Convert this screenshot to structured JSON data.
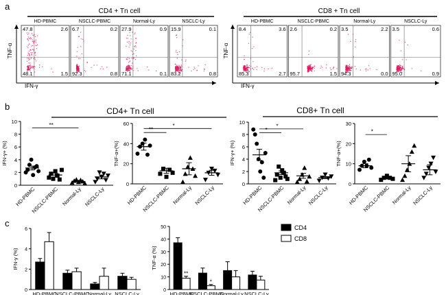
{
  "panel_labels": {
    "a": "a",
    "b": "b",
    "c": "c"
  },
  "colors": {
    "dot": "#d81b60",
    "cd4_bar": "#000000",
    "cd8_bar": "#ffffff",
    "line": "#444444"
  },
  "chart_data": [
    {
      "id": "a-cd4",
      "type": "scatter",
      "subtype": "flow-quadrant",
      "group_title": "CD4 + Tn cell",
      "xlabel": "IFN-γ",
      "ylabel": "TNF-α",
      "plots": [
        {
          "title": "HD-PBMC",
          "q": [
            "47.8",
            "2.6",
            "48.1",
            "1.5"
          ]
        },
        {
          "title": "NSCLC-PBMC",
          "q": [
            "6.7",
            "0.2",
            "92.3",
            "0.8"
          ]
        },
        {
          "title": "Normal-Ly",
          "q": [
            "27.9",
            "0.9",
            "71.1",
            "0.1"
          ]
        },
        {
          "title": "NSCLC-Ly",
          "q": [
            "15.9",
            "0.1",
            "83.2",
            "0.8"
          ]
        }
      ]
    },
    {
      "id": "a-cd8",
      "type": "scatter",
      "subtype": "flow-quadrant",
      "group_title": "CD8 + Tn cell",
      "xlabel": "IFN-γ",
      "ylabel": "TNF-α",
      "plots": [
        {
          "title": "HD-PBMC",
          "q": [
            "8.4",
            "3.6",
            "85.3",
            "2.7"
          ]
        },
        {
          "title": "NSCLC-PBMC",
          "q": [
            "2.6",
            "0.2",
            "95.7",
            "1.5"
          ]
        },
        {
          "title": "Normal-Ly",
          "q": [
            "3.5",
            "2.2",
            "94.3",
            "0.0"
          ]
        },
        {
          "title": "NSCLC-Ly",
          "q": [
            "3.5",
            "0.6",
            "95.0",
            "0.9"
          ]
        }
      ]
    },
    {
      "id": "b1",
      "type": "scatter",
      "group_title": "CD4+ Tn cell",
      "ylabel": "IFN-γ+ (%)",
      "ylim": [
        0,
        10
      ],
      "yticks": [
        0,
        2,
        4,
        6,
        8,
        10
      ],
      "categories": [
        "HD-PBMC",
        "NSCLC-PBMC",
        "Normal-Ly",
        "NSCLC-Ly"
      ],
      "points": [
        [
          2.0,
          2.4,
          3.2,
          4.0,
          1.6,
          2.8,
          3.0,
          2.2
        ],
        [
          1.2,
          1.8,
          1.0,
          2.2,
          1.5,
          0.9,
          2.4
        ],
        [
          0.4,
          0.7,
          0.9,
          0.5,
          0.8,
          0.6,
          0.3
        ],
        [
          0.5,
          1.0,
          2.0,
          1.3,
          1.8,
          0.8,
          1.5
        ]
      ],
      "mean": [
        2.7,
        1.6,
        0.6,
        1.3
      ],
      "sem": [
        0.3,
        0.3,
        0.15,
        0.3
      ],
      "sig": [
        {
          "from": 0,
          "to": 2,
          "label": "**",
          "y": 9.0
        }
      ]
    },
    {
      "id": "b2",
      "type": "scatter",
      "ylabel": "TNF-α+(%)",
      "ylim": [
        0,
        60
      ],
      "yticks": [
        0,
        20,
        40,
        60
      ],
      "categories": [
        "HD-PBMC",
        "NSCLC-PBMC",
        "Normal-Ly",
        "NSCLC-Ly"
      ],
      "points": [
        [
          30,
          37,
          40,
          44,
          29,
          38
        ],
        [
          10,
          15,
          7,
          14,
          11
        ],
        [
          2,
          10,
          17,
          26,
          15,
          8
        ],
        [
          4,
          11,
          15,
          13,
          9
        ]
      ],
      "mean": [
        37,
        13,
        15,
        11
      ],
      "sem": [
        3.5,
        2.5,
        6,
        2.5
      ],
      "sig": [
        {
          "from": 0,
          "to": 1,
          "label": "**",
          "y": 51
        },
        {
          "from": 0,
          "to": 3,
          "label": "*",
          "y": 55
        }
      ]
    },
    {
      "id": "b3",
      "type": "scatter",
      "group_title": "CD8+ Tn cell",
      "ylabel": "IFN-γ+ (%)",
      "ylim": [
        0,
        10
      ],
      "yticks": [
        0,
        2,
        4,
        6,
        8,
        10
      ],
      "categories": [
        "HD-PBMC",
        "NSCLC-PBMC",
        "Normal-Ly",
        "NSCLC-Ly"
      ],
      "points": [
        [
          8.8,
          8.0,
          6.5,
          4.0,
          2.0,
          3.5,
          1.0,
          5.0
        ],
        [
          0.6,
          1.5,
          2.8,
          1.0,
          2.2,
          1.8,
          1.2,
          0.8
        ],
        [
          0.3,
          0.8,
          1.5,
          2.6,
          0.4,
          1.2
        ],
        [
          0.5,
          1.0,
          1.5,
          0.9,
          1.2
        ]
      ],
      "mean": [
        4.7,
        1.8,
        1.3,
        1.0
      ],
      "sem": [
        0.9,
        0.3,
        0.4,
        0.15
      ],
      "sig": [
        {
          "from": 0,
          "to": 1,
          "label": "*",
          "y": 8.3
        },
        {
          "from": 0,
          "to": 2,
          "label": "*",
          "y": 8.9
        }
      ]
    },
    {
      "id": "b4",
      "type": "scatter",
      "ylabel": "TNF-α+(%)",
      "ylim": [
        0,
        30
      ],
      "yticks": [
        0,
        10,
        20,
        30
      ],
      "categories": [
        "HD-PBMC",
        "NSCLC-PBMC",
        "Normal-Ly",
        "NSCLC-Ly"
      ],
      "points": [
        [
          7,
          9,
          11,
          9,
          12,
          8
        ],
        [
          2,
          3,
          4,
          3,
          2.5
        ],
        [
          2,
          4,
          7,
          10,
          16,
          19
        ],
        [
          3,
          5,
          8,
          10,
          13,
          6
        ]
      ],
      "mean": [
        9.0,
        2.8,
        10.0,
        7.0
      ],
      "sem": [
        1.0,
        0.4,
        4.0,
        2.5
      ],
      "sig": [
        {
          "from": 0,
          "to": 1,
          "label": "*",
          "y": 24.5
        }
      ]
    },
    {
      "id": "c1",
      "type": "bar",
      "ylabel": "IFN-γ (%)",
      "ylim": [
        0,
        6
      ],
      "yticks": [
        0,
        2,
        4,
        6
      ],
      "categories": [
        "HD-PBMC",
        "NSCLC-PBMC",
        "Normal-Ly",
        "NSCLC-Ly"
      ],
      "series": [
        {
          "name": "CD4",
          "values": [
            2.7,
            1.6,
            0.55,
            1.3
          ],
          "err": [
            0.35,
            0.3,
            0.15,
            0.3
          ]
        },
        {
          "name": "CD8",
          "values": [
            4.7,
            1.75,
            1.3,
            1.0
          ],
          "err": [
            0.9,
            0.35,
            0.8,
            0.2
          ]
        }
      ]
    },
    {
      "id": "c2",
      "type": "bar",
      "ylabel": "TNF-α (%)",
      "ylim": [
        0,
        50
      ],
      "yticks": [
        0,
        10,
        20,
        30,
        40,
        50
      ],
      "categories": [
        "HD-PBMC",
        "NSCLC-PBMC",
        "Normal-Ly",
        "NSCLC-Ly"
      ],
      "series": [
        {
          "name": "CD4",
          "values": [
            37,
            13,
            15,
            11.5
          ],
          "err": [
            4,
            4,
            7,
            3
          ]
        },
        {
          "name": "CD8",
          "values": [
            9,
            3,
            10,
            7.5
          ],
          "err": [
            1.5,
            1,
            5,
            3
          ]
        }
      ],
      "annotations": [
        {
          "category": 0,
          "series": 1,
          "label": "**"
        },
        {
          "category": 1,
          "series": 1,
          "label": "*"
        }
      ],
      "legend": {
        "position": "right",
        "entries": [
          "CD4",
          "CD8"
        ]
      }
    }
  ]
}
